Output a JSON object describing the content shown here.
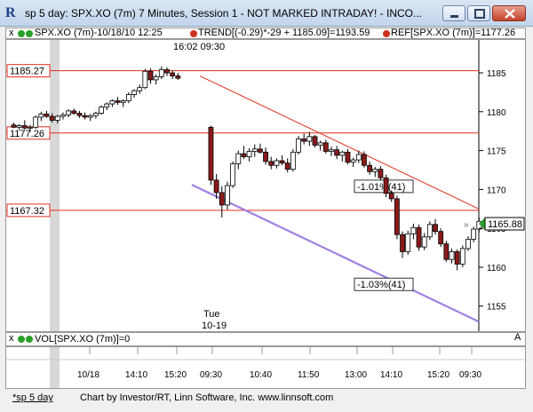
{
  "window": {
    "title": "sp 5 day: SPX.XO (7m) 7 Minutes, Session 1 - NOT MARKED INTRADAY! - INCO...",
    "app_icon": "R"
  },
  "toolbar": {
    "close_marker": "x",
    "series": "SPX.XO (7m)-10/18/10 12:25",
    "trend": "TREND[(-0.29)*-29 + 1185.09]=1193.59",
    "ref": "REF[SPX.XO (7m)]=1177.26"
  },
  "volume": {
    "close_marker": "x",
    "label": "VOL[SPX.XO (7m)]=0"
  },
  "scroll_marker": "A",
  "footer": {
    "tab": "*sp 5 day",
    "credit": "Chart by Investor/RT, Linn Software, Inc. www.linnsoft.com"
  },
  "chart_data": {
    "type": "candlestick",
    "y_ticks": [
      1155,
      1160,
      1165,
      1170,
      1175,
      1180,
      1185
    ],
    "ylim": [
      1152,
      1189
    ],
    "time_labels": [
      "10/18",
      "14:10",
      "15:20",
      "09:30",
      "10:40",
      "11:50",
      "13:00",
      "14:10",
      "15:20",
      "09:30"
    ],
    "top_annotation": "16:02  09:30",
    "session_label": [
      "Tue",
      "10-19"
    ],
    "reference_lines": [
      {
        "value": 1185.27,
        "label": "1185.27"
      },
      {
        "value": 1177.26,
        "label": "1177.26"
      },
      {
        "value": 1167.32,
        "label": "1167.32"
      }
    ],
    "last_price": {
      "value": 1165.88,
      "label": "1165.88"
    },
    "trendlines": [
      {
        "name": "upper",
        "from": [
          0,
          1184.6
        ],
        "to": [
          1,
          1167.5
        ],
        "label": "-1.01%(41)",
        "color": "#e03020"
      },
      {
        "name": "lower",
        "from": [
          0,
          1170.6
        ],
        "to": [
          1,
          1153.0
        ],
        "label": "-1.03%(41)",
        "color": "#a080e0"
      }
    ],
    "candles": [
      [
        1178.3,
        1178.6,
        1177.9,
        1178.0
      ],
      [
        1178.0,
        1178.4,
        1177.6,
        1178.2
      ],
      [
        1178.2,
        1178.9,
        1177.7,
        1177.9
      ],
      [
        1177.9,
        1178.3,
        1177.4,
        1178.0
      ],
      [
        1178.0,
        1179.5,
        1177.8,
        1179.3
      ],
      [
        1179.3,
        1180.0,
        1178.8,
        1179.7
      ],
      [
        1179.7,
        1180.1,
        1179.2,
        1179.4
      ],
      [
        1179.4,
        1179.8,
        1178.6,
        1178.9
      ],
      [
        1178.9,
        1179.6,
        1178.5,
        1179.4
      ],
      [
        1179.4,
        1179.9,
        1179.0,
        1179.6
      ],
      [
        1179.6,
        1180.3,
        1179.3,
        1180.1
      ],
      [
        1180.1,
        1180.4,
        1179.6,
        1179.8
      ],
      [
        1179.8,
        1180.1,
        1179.2,
        1179.5
      ],
      [
        1179.5,
        1179.9,
        1179.0,
        1179.3
      ],
      [
        1179.3,
        1179.7,
        1178.8,
        1179.5
      ],
      [
        1179.5,
        1180.0,
        1179.1,
        1179.8
      ],
      [
        1179.8,
        1180.8,
        1179.6,
        1180.6
      ],
      [
        1180.6,
        1181.2,
        1180.2,
        1181.0
      ],
      [
        1181.0,
        1181.6,
        1180.6,
        1181.4
      ],
      [
        1181.4,
        1181.9,
        1180.9,
        1181.2
      ],
      [
        1181.2,
        1181.6,
        1180.6,
        1181.4
      ],
      [
        1181.4,
        1182.5,
        1181.1,
        1182.2
      ],
      [
        1182.2,
        1182.9,
        1181.8,
        1182.7
      ],
      [
        1182.7,
        1183.5,
        1182.3,
        1183.1
      ],
      [
        1183.1,
        1185.5,
        1182.9,
        1185.2
      ],
      [
        1185.2,
        1185.6,
        1183.6,
        1184.1
      ],
      [
        1184.1,
        1184.8,
        1183.5,
        1184.5
      ],
      [
        1184.5,
        1185.8,
        1184.2,
        1185.4
      ],
      [
        1185.4,
        1185.7,
        1184.6,
        1185.0
      ],
      [
        1185.0,
        1185.3,
        1184.2,
        1184.6
      ],
      [
        1184.6,
        1185.0,
        1184.1,
        1184.3
      ],
      [
        1178.0,
        1178.2,
        1170.6,
        1171.2
      ],
      [
        1171.2,
        1172.0,
        1168.8,
        1169.6
      ],
      [
        1169.6,
        1170.4,
        1166.4,
        1168.0
      ],
      [
        1168.0,
        1171.0,
        1167.4,
        1170.5
      ],
      [
        1170.5,
        1173.6,
        1170.2,
        1173.3
      ],
      [
        1173.3,
        1175.0,
        1172.6,
        1174.6
      ],
      [
        1174.6,
        1175.6,
        1173.9,
        1174.2
      ],
      [
        1174.2,
        1175.3,
        1173.6,
        1174.9
      ],
      [
        1174.9,
        1175.8,
        1174.2,
        1175.2
      ],
      [
        1175.2,
        1175.9,
        1174.6,
        1174.8
      ],
      [
        1174.8,
        1175.4,
        1173.2,
        1173.6
      ],
      [
        1173.6,
        1174.2,
        1172.6,
        1173.1
      ],
      [
        1173.1,
        1174.0,
        1172.7,
        1173.7
      ],
      [
        1173.7,
        1174.4,
        1173.1,
        1173.4
      ],
      [
        1173.4,
        1174.0,
        1172.2,
        1172.6
      ],
      [
        1172.6,
        1175.2,
        1172.3,
        1174.8
      ],
      [
        1174.8,
        1176.9,
        1174.5,
        1176.5
      ],
      [
        1176.5,
        1177.2,
        1175.8,
        1176.2
      ],
      [
        1176.2,
        1177.4,
        1175.6,
        1176.8
      ],
      [
        1176.8,
        1177.0,
        1175.4,
        1175.7
      ],
      [
        1175.7,
        1176.3,
        1175.0,
        1176.0
      ],
      [
        1176.0,
        1176.4,
        1174.6,
        1174.9
      ],
      [
        1174.9,
        1175.5,
        1174.3,
        1175.1
      ],
      [
        1175.1,
        1175.6,
        1173.9,
        1174.4
      ],
      [
        1174.4,
        1175.0,
        1173.6,
        1174.8
      ],
      [
        1174.8,
        1175.2,
        1173.2,
        1173.5
      ],
      [
        1173.5,
        1174.1,
        1172.9,
        1173.8
      ],
      [
        1173.8,
        1175.0,
        1173.4,
        1174.5
      ],
      [
        1174.5,
        1174.9,
        1172.8,
        1173.1
      ],
      [
        1173.1,
        1173.6,
        1171.9,
        1172.3
      ],
      [
        1172.3,
        1172.9,
        1171.6,
        1172.6
      ],
      [
        1172.6,
        1173.0,
        1171.2,
        1171.5
      ],
      [
        1171.5,
        1171.9,
        1169.0,
        1169.5
      ],
      [
        1169.5,
        1169.9,
        1168.4,
        1168.8
      ],
      [
        1168.8,
        1169.2,
        1163.6,
        1164.2
      ],
      [
        1164.2,
        1164.6,
        1161.2,
        1162.0
      ],
      [
        1162.0,
        1164.7,
        1161.6,
        1164.3
      ],
      [
        1164.3,
        1165.6,
        1163.6,
        1165.1
      ],
      [
        1165.1,
        1165.5,
        1162.1,
        1162.6
      ],
      [
        1162.6,
        1164.4,
        1162.2,
        1163.9
      ],
      [
        1163.9,
        1165.9,
        1163.5,
        1165.5
      ],
      [
        1165.5,
        1166.2,
        1164.2,
        1164.6
      ],
      [
        1164.6,
        1165.0,
        1162.6,
        1163.0
      ],
      [
        1163.0,
        1163.4,
        1160.7,
        1161.0
      ],
      [
        1161.0,
        1162.4,
        1160.5,
        1162.0
      ],
      [
        1162.0,
        1162.3,
        1159.6,
        1160.4
      ],
      [
        1160.4,
        1162.8,
        1160.0,
        1162.4
      ],
      [
        1162.4,
        1164.0,
        1162.1,
        1163.6
      ],
      [
        1163.6,
        1165.2,
        1163.2,
        1164.9
      ],
      [
        1164.9,
        1166.4,
        1164.5,
        1165.9
      ]
    ]
  }
}
